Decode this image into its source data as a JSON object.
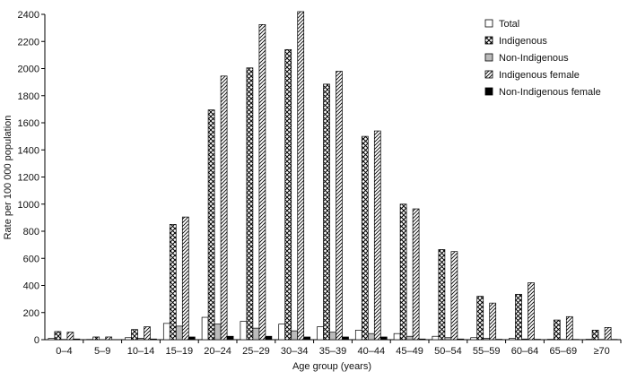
{
  "chart_data": {
    "type": "bar",
    "xlabel": "Age group (years)",
    "ylabel": "Rate per 100 000 population",
    "ylim": [
      0,
      2400
    ],
    "yticks": [
      0,
      200,
      400,
      600,
      800,
      1000,
      1200,
      1400,
      1600,
      1800,
      2000,
      2200,
      2400
    ],
    "legend_position": "top-right",
    "grid": false,
    "categories": [
      "0–4",
      "5–9",
      "10–14",
      "15–19",
      "20–24",
      "25–29",
      "30–34",
      "35–39",
      "40–44",
      "45–49",
      "50–54",
      "55–59",
      "60–64",
      "65–69",
      "≥70"
    ],
    "series": [
      {
        "name": "Total",
        "pattern": "white",
        "values": [
          10,
          2,
          15,
          120,
          165,
          135,
          115,
          95,
          70,
          45,
          25,
          15,
          10,
          3,
          3
        ]
      },
      {
        "name": "Indigenous",
        "pattern": "crosshatch",
        "values": [
          60,
          20,
          75,
          850,
          1695,
          2005,
          2140,
          1885,
          1500,
          1000,
          665,
          320,
          335,
          145,
          70
        ]
      },
      {
        "name": "Non-Indigenous",
        "pattern": "gray",
        "values": [
          2,
          1,
          10,
          100,
          115,
          85,
          65,
          55,
          45,
          25,
          15,
          10,
          5,
          2,
          2
        ]
      },
      {
        "name": "Indigenous female",
        "pattern": "diagonal",
        "values": [
          55,
          20,
          95,
          905,
          1945,
          2325,
          2420,
          1980,
          1540,
          965,
          650,
          270,
          420,
          170,
          90
        ]
      },
      {
        "name": "Non-Indigenous female",
        "pattern": "black",
        "values": [
          5,
          1,
          5,
          20,
          25,
          25,
          20,
          20,
          20,
          5,
          5,
          3,
          3,
          2,
          2
        ]
      }
    ]
  }
}
